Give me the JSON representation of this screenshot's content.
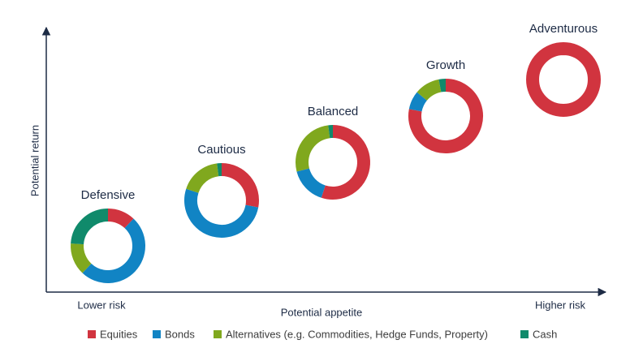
{
  "chart_data": {
    "type": "donut",
    "y_label": "Potential return",
    "x_label": "Potential appetite",
    "x_left_label": "Lower risk",
    "x_right_label": "Higher risk",
    "series": [
      {
        "name": "Equities",
        "color": "#d1343f"
      },
      {
        "name": "Bonds",
        "color": "#1184c4"
      },
      {
        "name": "Alternatives (e.g. Commodities, Hedge Funds, Property)",
        "color": "#80a81e"
      },
      {
        "name": "Cash",
        "color": "#108a6b"
      }
    ],
    "portfolios": [
      {
        "label": "Defensive",
        "values": [
          12,
          50,
          14,
          24
        ]
      },
      {
        "label": "Cautious",
        "values": [
          28,
          52,
          18,
          2
        ]
      },
      {
        "label": "Balanced",
        "values": [
          55,
          16,
          27,
          2
        ]
      },
      {
        "label": "Growth",
        "values": [
          78,
          8,
          11,
          3
        ]
      },
      {
        "label": "Adventurous",
        "values": [
          100,
          0,
          0,
          0
        ]
      }
    ]
  }
}
